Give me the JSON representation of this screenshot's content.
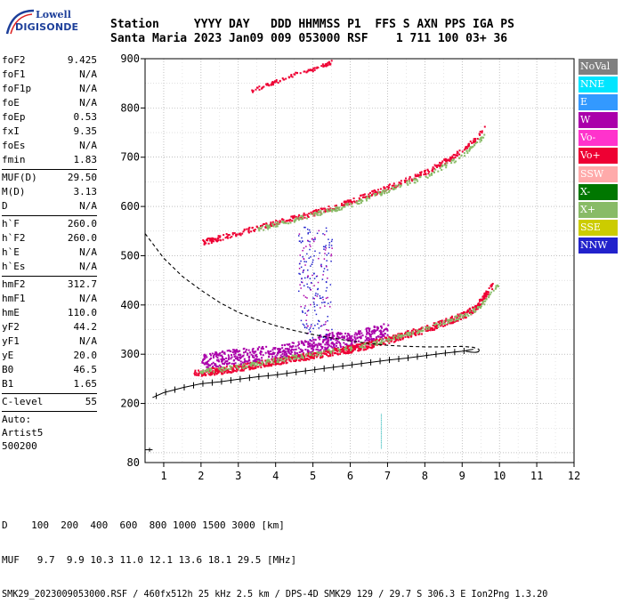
{
  "logo": {
    "brand_line1": "Lowell",
    "brand_line2": "DIGISONDE"
  },
  "header": {
    "line1": "Station     YYYY DAY   DDD HHMMSS P1  FFS S AXN PPS IGA PS",
    "line2": "Santa Maria 2023 Jan09 009 053000 RSF    1 711 100 03+ 36"
  },
  "params": {
    "group1": [
      {
        "label": "foF2",
        "value": "9.425"
      },
      {
        "label": "foF1",
        "value": "N/A"
      },
      {
        "label": "foF1p",
        "value": "N/A"
      },
      {
        "label": "foE",
        "value": "N/A"
      },
      {
        "label": "foEp",
        "value": "0.53"
      },
      {
        "label": "fxI",
        "value": "9.35"
      },
      {
        "label": "foEs",
        "value": "N/A"
      },
      {
        "label": "fmin",
        "value": "1.83"
      }
    ],
    "group2": [
      {
        "label": "MUF(D)",
        "value": "29.50"
      },
      {
        "label": "M(D)",
        "value": "3.13"
      },
      {
        "label": "D",
        "value": "N/A"
      }
    ],
    "group3": [
      {
        "label": "h`F",
        "value": "260.0"
      },
      {
        "label": "h`F2",
        "value": "260.0"
      },
      {
        "label": "h`E",
        "value": "N/A"
      },
      {
        "label": "h`Es",
        "value": "N/A"
      }
    ],
    "group4": [
      {
        "label": "hmF2",
        "value": "312.7"
      },
      {
        "label": "hmF1",
        "value": "N/A"
      },
      {
        "label": "hmE",
        "value": "110.0"
      },
      {
        "label": "yF2",
        "value": "44.2"
      },
      {
        "label": "yF1",
        "value": "N/A"
      },
      {
        "label": "yE",
        "value": "20.0"
      },
      {
        "label": "B0",
        "value": "46.5"
      },
      {
        "label": "B1",
        "value": "1.65"
      }
    ],
    "group5": [
      {
        "label": "C-level",
        "value": "55"
      }
    ],
    "auto_lines": [
      "Auto:",
      "Artist5",
      "500200"
    ]
  },
  "legend": [
    {
      "label": "NoVal",
      "bg": "#808080",
      "fg": "#ffffff"
    },
    {
      "label": "NNE",
      "bg": "#00e5ff",
      "fg": "#ffffff"
    },
    {
      "label": "E",
      "bg": "#3399ff",
      "fg": "#ffffff"
    },
    {
      "label": "W",
      "bg": "#aa00aa",
      "fg": "#ffffff"
    },
    {
      "label": "Vo-",
      "bg": "#ff33cc",
      "fg": "#ffffff"
    },
    {
      "label": "Vo+",
      "bg": "#ee0033",
      "fg": "#ffffff"
    },
    {
      "label": "SSW",
      "bg": "#ffaaaa",
      "fg": "#ffffff"
    },
    {
      "label": "X-",
      "bg": "#007700",
      "fg": "#ffffff"
    },
    {
      "label": "X+",
      "bg": "#88bb66",
      "fg": "#ffffff"
    },
    {
      "label": "SSE",
      "bg": "#cccc00",
      "fg": "#ffffff"
    },
    {
      "label": "NNW",
      "bg": "#2222cc",
      "fg": "#ffffff"
    }
  ],
  "bottom": {
    "line1": "D    100  200  400  600  800 1000 1500 3000 [km]",
    "line2": "MUF   9.7  9.9 10.3 11.0 12.1 13.6 18.1 29.5 [MHz]",
    "line3": "SMK29_2023009053000.RSF / 460fx512h 25 kHz 2.5 km / DPS-4D SMK29 129 / 29.7 S 306.3 E Ion2Png 1.3.20"
  },
  "chart_data": {
    "type": "scatter",
    "xlim": [
      0.5,
      12
    ],
    "ylim": [
      80,
      900
    ],
    "x_ticks": [
      1,
      2,
      3,
      4,
      5,
      6,
      7,
      8,
      9,
      10,
      11,
      12
    ],
    "y_ticks": [
      200,
      300,
      400,
      500,
      600,
      700,
      800,
      900
    ],
    "y_tick_labels_extra": [
      80
    ],
    "grid": true,
    "traces": [
      {
        "name": "O-mode F2 trace",
        "color": "#ee0033",
        "points": [
          [
            1.8,
            262
          ],
          [
            2.5,
            268
          ],
          [
            3.0,
            274
          ],
          [
            3.5,
            281
          ],
          [
            4.0,
            287
          ],
          [
            4.5,
            293
          ],
          [
            5.0,
            299
          ],
          [
            5.5,
            306
          ],
          [
            6.0,
            312
          ],
          [
            6.5,
            320
          ],
          [
            7.0,
            330
          ],
          [
            7.5,
            342
          ],
          [
            8.0,
            352
          ],
          [
            8.5,
            366
          ],
          [
            9.0,
            380
          ],
          [
            9.3,
            392
          ],
          [
            9.5,
            410
          ],
          [
            9.8,
            440
          ]
        ]
      },
      {
        "name": "O-mode multi-hop trace",
        "color": "#ee0033",
        "points": [
          [
            2.0,
            528
          ],
          [
            3.0,
            548
          ],
          [
            4.0,
            568
          ],
          [
            5.0,
            588
          ],
          [
            6.0,
            612
          ],
          [
            7.0,
            640
          ],
          [
            8.0,
            670
          ],
          [
            8.5,
            692
          ],
          [
            9.0,
            715
          ],
          [
            9.3,
            735
          ],
          [
            9.6,
            765
          ]
        ]
      },
      {
        "name": "X-mode multi-hop trace",
        "color": "#88bb66",
        "points": [
          [
            3.5,
            555
          ],
          [
            5.0,
            585
          ],
          [
            6.0,
            605
          ],
          [
            7.0,
            635
          ],
          [
            8.0,
            662
          ],
          [
            9.0,
            705
          ],
          [
            9.6,
            745
          ]
        ]
      },
      {
        "name": "spread F echoes",
        "color": "#aa00aa",
        "points": [
          [
            2.0,
            285
          ],
          [
            2.5,
            292
          ],
          [
            3.0,
            296
          ],
          [
            3.5,
            300
          ],
          [
            4.0,
            302
          ],
          [
            4.5,
            310
          ],
          [
            5.0,
            316
          ],
          [
            5.5,
            330
          ],
          [
            6.0,
            328
          ],
          [
            6.5,
            340
          ],
          [
            7.0,
            350
          ]
        ]
      },
      {
        "name": "high trace",
        "color": "#ee0033",
        "points": [
          [
            3.3,
            835
          ],
          [
            4.0,
            855
          ],
          [
            4.5,
            870
          ],
          [
            5.0,
            880
          ],
          [
            5.5,
            895
          ]
        ]
      }
    ],
    "profile_curve": {
      "name": "electron density profile",
      "points": [
        [
          0.5,
          545
        ],
        [
          1.0,
          495
        ],
        [
          1.5,
          458
        ],
        [
          2.0,
          430
        ],
        [
          2.5,
          405
        ],
        [
          3.0,
          385
        ],
        [
          3.5,
          370
        ],
        [
          4.0,
          358
        ],
        [
          4.5,
          348
        ],
        [
          5.0,
          340
        ],
        [
          5.5,
          333
        ],
        [
          6.0,
          327
        ],
        [
          6.5,
          322
        ],
        [
          7.0,
          318
        ],
        [
          7.5,
          316
        ],
        [
          8.0,
          315
        ],
        [
          8.5,
          315
        ],
        [
          9.0,
          316
        ],
        [
          9.3,
          314
        ],
        [
          9.45,
          310
        ]
      ]
    },
    "model_trace": {
      "name": "fitted virtual height",
      "points": [
        [
          0.7,
          212
        ],
        [
          1.0,
          222
        ],
        [
          1.5,
          232
        ],
        [
          2.0,
          240
        ],
        [
          2.5,
          244
        ],
        [
          3.0,
          249
        ],
        [
          3.5,
          254
        ],
        [
          4.0,
          258
        ],
        [
          4.5,
          263
        ],
        [
          5.0,
          268
        ],
        [
          5.5,
          273
        ],
        [
          6.0,
          278
        ],
        [
          6.5,
          283
        ],
        [
          7.0,
          288
        ],
        [
          7.5,
          292
        ],
        [
          8.0,
          297
        ],
        [
          8.5,
          302
        ],
        [
          9.0,
          306
        ],
        [
          9.3,
          310
        ]
      ]
    }
  }
}
